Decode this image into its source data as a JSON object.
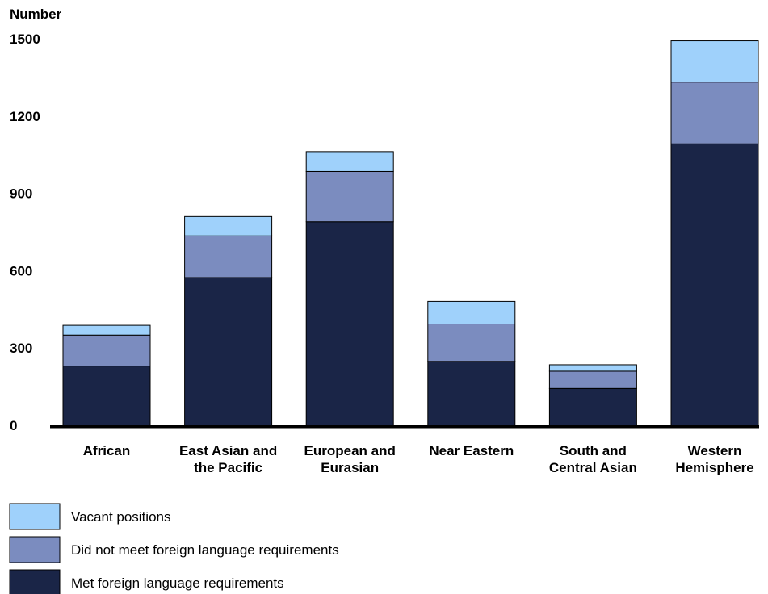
{
  "chart_data": {
    "type": "bar",
    "stacked": true,
    "ylabel": "Number",
    "ylim": [
      0,
      1500
    ],
    "yticks": [
      0,
      300,
      600,
      900,
      1200,
      1500
    ],
    "categories": [
      [
        "African"
      ],
      [
        "East Asian and",
        "the Pacific"
      ],
      [
        "European and",
        "Eurasian"
      ],
      [
        "Near Eastern"
      ],
      [
        "South and",
        "Central Asian"
      ],
      [
        "Western",
        "Hemisphere"
      ]
    ],
    "series": [
      {
        "name": "Met foreign language requirements",
        "color": "#1a2547",
        "values": [
          230,
          573,
          790,
          248,
          143,
          1092
        ]
      },
      {
        "name": "Did not meet foreign language requirements",
        "color": "#7b8cbf",
        "values": [
          120,
          162,
          195,
          145,
          67,
          240
        ]
      },
      {
        "name": "Vacant positions",
        "color": "#9fd1fb",
        "values": [
          38,
          75,
          77,
          88,
          25,
          160
        ]
      }
    ],
    "legend": {
      "placement": "bottom-left",
      "order": [
        "Vacant positions",
        "Did not meet foreign language requirements",
        "Met foreign language requirements"
      ]
    },
    "grid": false
  }
}
